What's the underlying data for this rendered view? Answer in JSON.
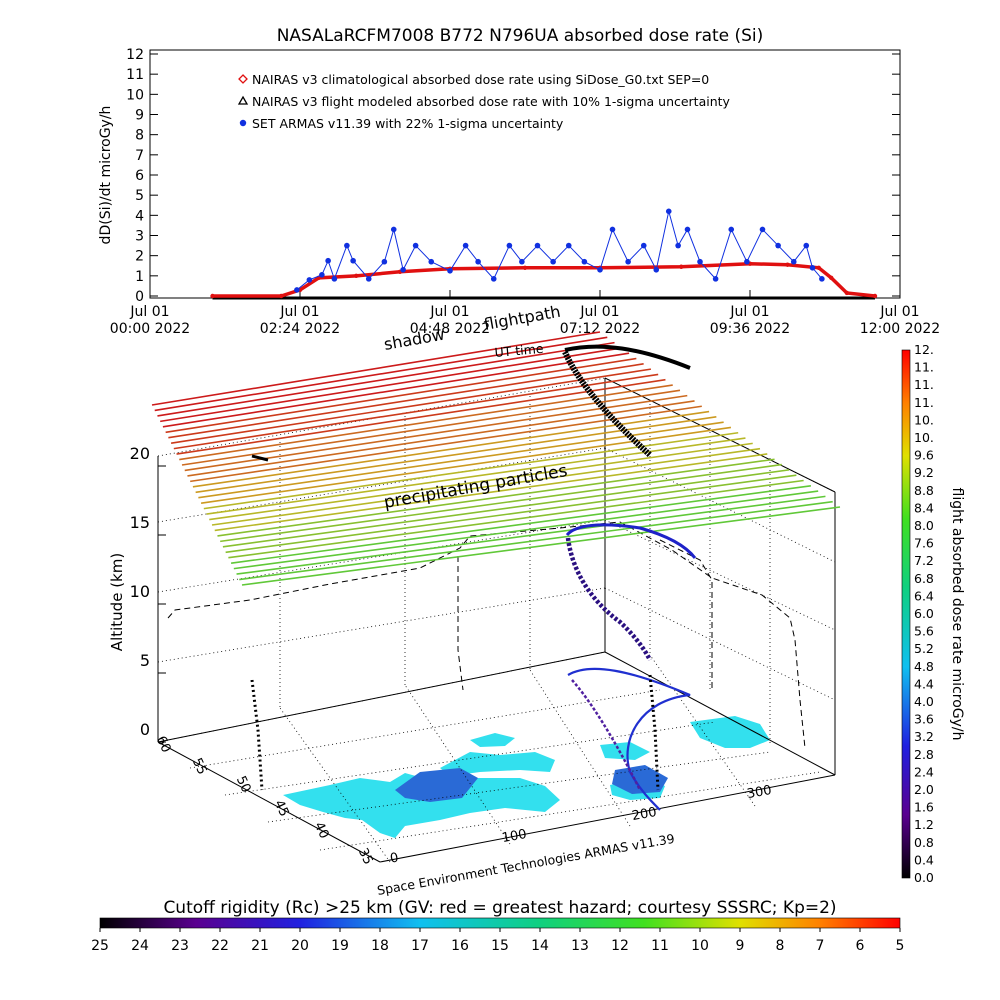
{
  "chart_data": [
    {
      "type": "line",
      "title": "NASALaRCFM7008  B772 N796UA absorbed dose rate (Si)",
      "ylabel": "dD(Si)/dt microGy/h",
      "ylim": [
        0,
        12
      ],
      "yticks": [
        "0",
        "1",
        "2",
        "3",
        "4",
        "5",
        "6",
        "7",
        "8",
        "9",
        "10",
        "11",
        "12"
      ],
      "xlim_hours": [
        0,
        12
      ],
      "xticks": [
        {
          "h": 0,
          "line1": "Jul 01",
          "line2": "00:00 2022"
        },
        {
          "h": 2.4,
          "line1": "Jul 01",
          "line2": "02:24 2022"
        },
        {
          "h": 4.8,
          "line1": "Jul 01",
          "line2": "04:48 2022"
        },
        {
          "h": 7.2,
          "line1": "Jul 01",
          "line2": "07:12 2022"
        },
        {
          "h": 9.6,
          "line1": "Jul 01",
          "line2": "09:36 2022"
        },
        {
          "h": 12,
          "line1": "Jul 01",
          "line2": "12:00 2022"
        }
      ],
      "legend": [
        {
          "label": "NAIRAS v3 climatological absorbed dose rate using SiDose_G0.txt SEP=0",
          "color": "#e01010",
          "marker": "diamond"
        },
        {
          "label": "NAIRAS v3 flight modeled absorbed dose rate with 10% 1-sigma uncertainty",
          "color": "#000000",
          "marker": "triangle"
        },
        {
          "label": "SET ARMAS v11.39 with 22% 1-sigma uncertainty",
          "color": "#1030e0",
          "marker": "dot"
        }
      ],
      "series": [
        {
          "name": "NAIRAS v3 climatological absorbed dose rate using SiDose_G0.txt SEP=0",
          "x": [
            1.0,
            2.1,
            2.4,
            2.7,
            3.3,
            4.0,
            4.8,
            6.0,
            7.2,
            8.5,
            9.6,
            10.2,
            10.7,
            10.9,
            11.15,
            11.6
          ],
          "y": [
            0.0,
            0.0,
            0.3,
            0.9,
            1.0,
            1.2,
            1.35,
            1.4,
            1.4,
            1.45,
            1.6,
            1.55,
            1.4,
            0.9,
            0.15,
            0.0
          ]
        },
        {
          "name": "NAIRAS v3 flight modeled absorbed dose rate with 10% 1-sigma uncertainty",
          "x": [
            1.0,
            2.2,
            3.0,
            4.0,
            5.0,
            6.0,
            7.0,
            8.0,
            9.0,
            10.0,
            11.0,
            11.6
          ],
          "y": [
            0.0,
            0.0,
            0.0,
            0.0,
            0.0,
            0.0,
            0.0,
            0.0,
            0.0,
            0.0,
            0.0,
            0.0
          ]
        },
        {
          "name": "SET ARMAS v11.39 with 22% 1-sigma uncertainty",
          "x": [
            2.35,
            2.55,
            2.75,
            2.85,
            2.95,
            3.15,
            3.25,
            3.5,
            3.75,
            3.9,
            4.05,
            4.25,
            4.5,
            4.8,
            5.05,
            5.25,
            5.5,
            5.75,
            5.95,
            6.2,
            6.45,
            6.7,
            6.95,
            7.2,
            7.4,
            7.65,
            7.9,
            8.1,
            8.3,
            8.45,
            8.6,
            8.8,
            9.05,
            9.3,
            9.55,
            9.8,
            10.05,
            10.3,
            10.5,
            10.6,
            10.75
          ],
          "y": [
            0.3,
            0.8,
            1.05,
            1.75,
            0.85,
            2.5,
            1.75,
            0.85,
            1.7,
            3.3,
            1.3,
            2.5,
            1.7,
            1.25,
            2.5,
            1.7,
            0.85,
            2.5,
            1.7,
            2.5,
            1.7,
            2.5,
            1.7,
            1.3,
            3.3,
            1.7,
            2.5,
            1.3,
            4.2,
            2.5,
            3.3,
            1.7,
            0.85,
            3.3,
            1.7,
            3.3,
            2.5,
            1.7,
            2.5,
            1.4,
            0.85
          ]
        }
      ]
    },
    {
      "type": "other",
      "zlabel": "Altitude (km)",
      "zticks": [
        "0",
        "5",
        "10",
        "15",
        "20"
      ],
      "lon_ticks": [
        "0",
        "100",
        "200",
        "300"
      ],
      "lat_ticks": [
        "35",
        "40",
        "45",
        "50",
        "55",
        "60"
      ],
      "plane_labels": [
        "shadow",
        "flightpath",
        "UT time",
        "precipitating particles"
      ],
      "credit": "Space Environment Technologies ARMAS v11.39",
      "colorbar_title": "flight absorbed dose rate microGy/h",
      "colorbar_ticks": [
        "0.0",
        "0.4",
        "0.8",
        "1.2",
        "1.6",
        "2.0",
        "2.4",
        "2.8",
        "3.2",
        "3.6",
        "4.0",
        "4.4",
        "4.8",
        "5.2",
        "5.6",
        "6.0",
        "6.4",
        "6.8",
        "7.2",
        "7.6",
        "8.0",
        "8.4",
        "8.8",
        "9.2",
        "9.6",
        "10.",
        "10.",
        "11.",
        "11.",
        "11.",
        "12."
      ],
      "colorbar_range": [
        0,
        12
      ],
      "rigidity_title": "Cutoff rigidity (Rc) >25 km (GV: red = greatest hazard; courtesy SSSRC; Kp=2)",
      "rigidity_ticks": [
        "25",
        "24",
        "23",
        "22",
        "21",
        "20",
        "19",
        "18",
        "17",
        "16",
        "15",
        "14",
        "13",
        "12",
        "11",
        "10",
        "9",
        "8",
        "7",
        "6",
        "5"
      ],
      "rigidity_range": [
        25,
        5
      ]
    }
  ],
  "colors": {
    "nairas_clim": "#e01010",
    "nairas_flight": "#000000",
    "armas": "#1030e0",
    "land": "#33e0ee"
  }
}
